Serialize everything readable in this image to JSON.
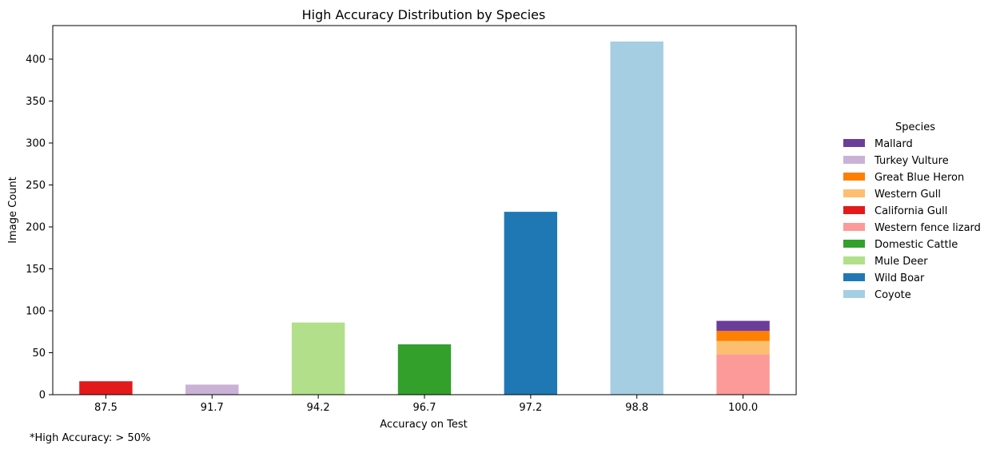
{
  "chart_data": {
    "type": "bar",
    "stacked": true,
    "title": "High Accuracy Distribution by Species",
    "xlabel": "Accuracy on Test",
    "ylabel": "Image Count",
    "categories": [
      "87.5",
      "91.7",
      "94.2",
      "96.7",
      "97.2",
      "98.8",
      "100.0"
    ],
    "ylim": [
      0,
      440
    ],
    "yticks": [
      0,
      50,
      100,
      150,
      200,
      250,
      300,
      350,
      400
    ],
    "grid": false,
    "legend": {
      "title": "Species",
      "placement": "right"
    },
    "series": [
      {
        "name": "Coyote",
        "color": "#a6cee3",
        "values": [
          0,
          0,
          0,
          0,
          0,
          421,
          0
        ]
      },
      {
        "name": "Wild Boar",
        "color": "#1f78b4",
        "values": [
          0,
          0,
          0,
          0,
          218,
          0,
          0
        ]
      },
      {
        "name": "Mule Deer",
        "color": "#b2df8a",
        "values": [
          0,
          0,
          86,
          0,
          0,
          0,
          0
        ]
      },
      {
        "name": "Domestic Cattle",
        "color": "#33a02c",
        "values": [
          0,
          0,
          0,
          60,
          0,
          0,
          0
        ]
      },
      {
        "name": "Western fence lizard",
        "color": "#fb9a99",
        "values": [
          0,
          0,
          0,
          0,
          0,
          0,
          48
        ]
      },
      {
        "name": "California Gull",
        "color": "#e31a1c",
        "values": [
          16,
          0,
          0,
          0,
          0,
          0,
          0
        ]
      },
      {
        "name": "Western Gull",
        "color": "#fdbf6f",
        "values": [
          0,
          0,
          0,
          0,
          0,
          0,
          16
        ]
      },
      {
        "name": "Great Blue Heron",
        "color": "#ff7f00",
        "values": [
          0,
          0,
          0,
          0,
          0,
          0,
          12
        ]
      },
      {
        "name": "Turkey Vulture",
        "color": "#cab2d6",
        "values": [
          0,
          12,
          0,
          0,
          0,
          0,
          0
        ]
      },
      {
        "name": "Mallard",
        "color": "#6a3d9a",
        "values": [
          0,
          0,
          0,
          0,
          0,
          0,
          12
        ]
      }
    ],
    "footnote": "*High Accuracy: > 50%"
  }
}
